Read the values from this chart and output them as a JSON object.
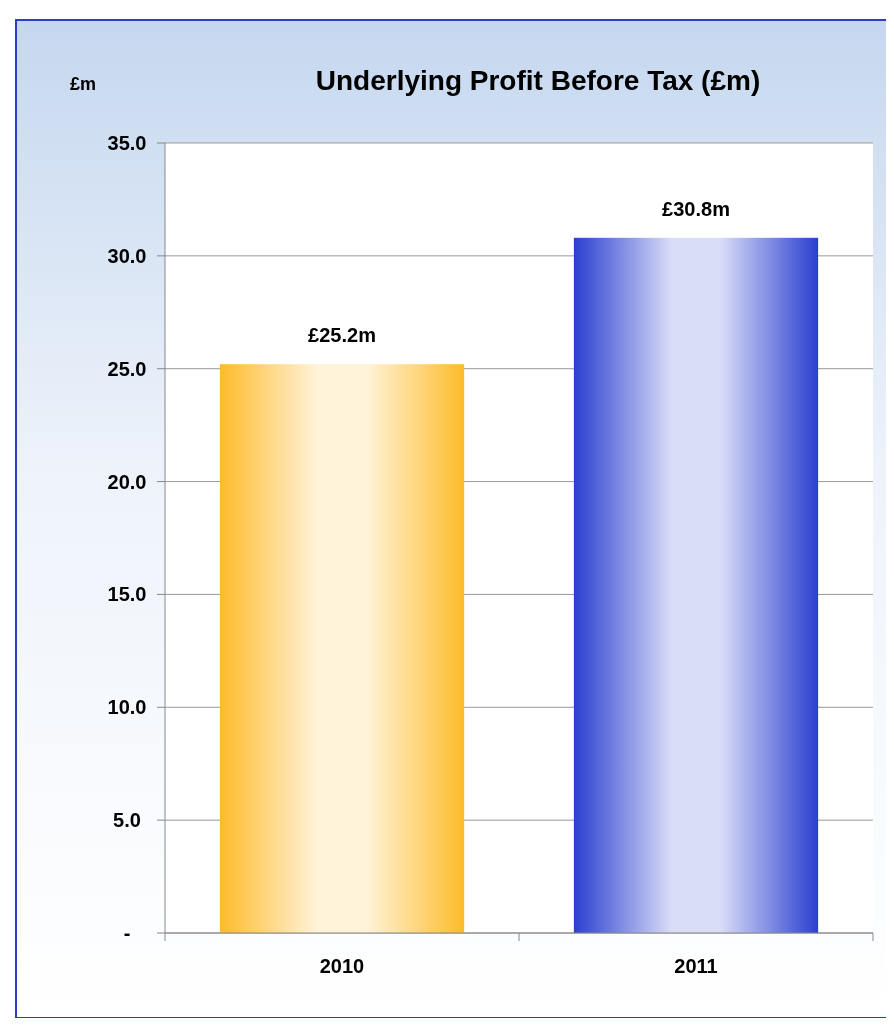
{
  "chart_data": {
    "type": "bar",
    "title": "Underlying Profit Before Tax (£m)",
    "ylabel": "£m",
    "categories": [
      "2010",
      "2011"
    ],
    "values": [
      25.2,
      30.8
    ],
    "colors": [
      "#fdbb2a",
      "#2a3fd0"
    ],
    "value_labels": [
      "£25.2m",
      "£30.8m"
    ],
    "ylim": [
      0,
      35
    ],
    "yticks": [
      {
        "value": 0,
        "label": "-"
      },
      {
        "value": 5,
        "label": "5.0"
      },
      {
        "value": 10,
        "label": "10.0"
      },
      {
        "value": 15,
        "label": "15.0"
      },
      {
        "value": 20,
        "label": "20.0"
      },
      {
        "value": 25,
        "label": "25.0"
      },
      {
        "value": 30,
        "label": "30.0"
      },
      {
        "value": 35,
        "label": "35.0"
      }
    ],
    "grid": "y"
  }
}
